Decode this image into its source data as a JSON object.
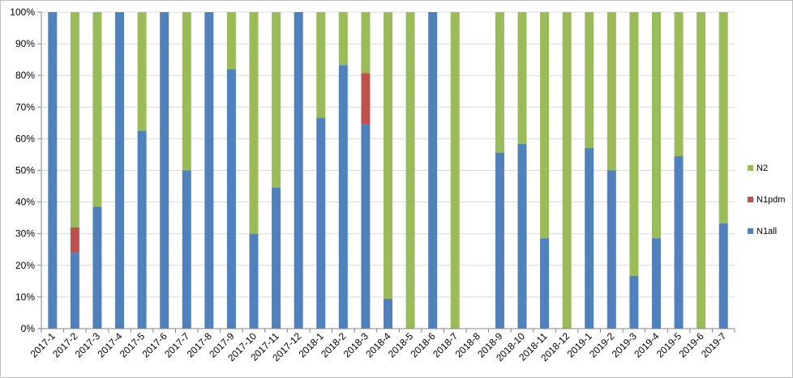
{
  "chart_data": {
    "type": "bar",
    "stacked": true,
    "percent_stacked": true,
    "categories": [
      "2017-1",
      "2017-2",
      "2017-3",
      "2017-4",
      "2017-5",
      "2017-6",
      "2017-7",
      "2017-8",
      "2017-9",
      "2017-10",
      "2017-11",
      "2017-12",
      "2018-1",
      "2018-2",
      "2018-3",
      "2018-4",
      "2018-5",
      "2018-6",
      "2018-7",
      "2018-8",
      "2018-9",
      "2018-10",
      "2018-11",
      "2018-12",
      "2019-1",
      "2019-2",
      "2019-3",
      "2019-4",
      "2019-5",
      "2019-6",
      "2019-7"
    ],
    "series": [
      {
        "name": "N1all",
        "color": "#4f81bd",
        "values": [
          100,
          24,
          38.5,
          100,
          62.5,
          100,
          50,
          100,
          82,
          30,
          44.5,
          100,
          66.7,
          83.3,
          64.5,
          9.5,
          0,
          100,
          0,
          0,
          55.6,
          58.3,
          28.6,
          0,
          57.1,
          50,
          16.7,
          28.6,
          54.5,
          0,
          33.3
        ]
      },
      {
        "name": "N1pdm",
        "color": "#c0504d",
        "values": [
          0,
          8,
          0,
          0,
          0,
          0,
          0,
          0,
          0,
          0,
          0,
          0,
          0,
          0,
          16.2,
          0,
          0,
          0,
          0,
          0,
          0,
          0,
          0,
          0,
          0,
          0,
          0,
          0,
          0,
          0,
          0
        ]
      },
      {
        "name": "N2",
        "color": "#9bbb59",
        "values": [
          0,
          68,
          61.5,
          0,
          37.5,
          0,
          50,
          0,
          18,
          70,
          55.5,
          0,
          33.3,
          16.7,
          19.3,
          90.5,
          100,
          0,
          100,
          0,
          44.4,
          41.7,
          71.4,
          100,
          42.9,
          50,
          83.3,
          71.4,
          45.5,
          100,
          66.7
        ]
      }
    ],
    "y_ticks": [
      "0%",
      "10%",
      "20%",
      "30%",
      "40%",
      "50%",
      "60%",
      "70%",
      "80%",
      "90%",
      "100%"
    ],
    "ylim": [
      0,
      100
    ],
    "grid": true,
    "legend_position": "right",
    "legend_order": [
      "N2",
      "N1pdm",
      "N1all"
    ]
  }
}
